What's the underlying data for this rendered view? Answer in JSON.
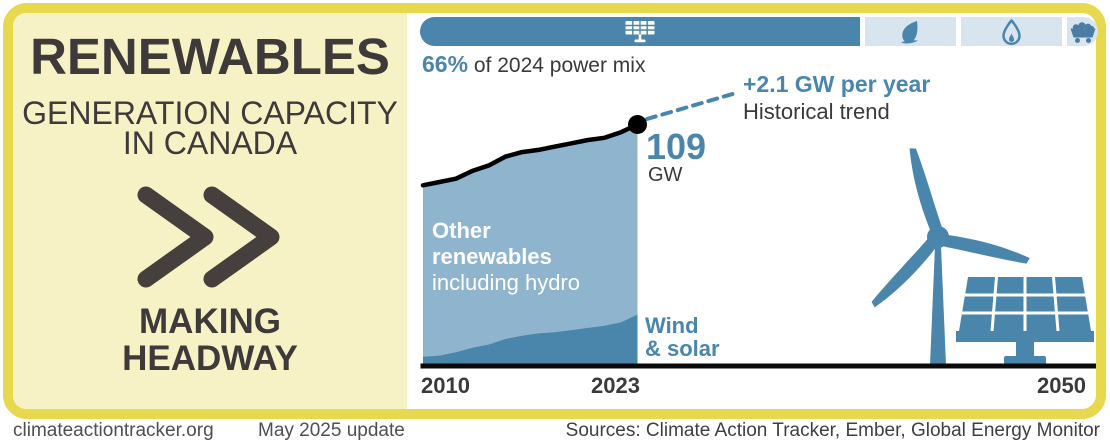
{
  "colors": {
    "accent_blue": "#4a86ab",
    "light_area_blue": "#8fb4cd",
    "pale_segment_blue": "#d8e4ee",
    "panel_yellow": "#f7f2c5",
    "border_yellow": "#e8d84d",
    "heading_charcoal": "#3e3a39",
    "footer_gray": "#4f4f4f"
  },
  "left_panel": {
    "title": "RENEWABLES",
    "subtitle_line1": "GENERATION CAPACITY",
    "subtitle_line2": "IN CANADA",
    "chevron_icon": "double-chevron-right-icon",
    "tagline_line1": "MAKING",
    "tagline_line2": "HEADWAY"
  },
  "power_mix_bar": {
    "caption_highlight": "66%",
    "caption_rest": " of 2024 power mix",
    "segments": [
      {
        "icon": "solar-panel-icon",
        "share_pct_of_2024_power_mix": 66
      },
      {
        "icon": "leaf-icon"
      },
      {
        "icon": "flame-icon"
      },
      {
        "icon": "coal-cart-icon"
      }
    ]
  },
  "chart": {
    "peak_value": "109",
    "peak_unit": "GW",
    "trend_label": "+2.1 GW per year",
    "trend_sublabel": "Historical trend",
    "area_label_line1": "Other",
    "area_label_line2": "renewables",
    "area_label_line3": "including hydro",
    "band_label_line1": "Wind",
    "band_label_line2": "& solar",
    "x_ticks": [
      "2010",
      "2023",
      "2050"
    ]
  },
  "chart_data": {
    "type": "area",
    "title": "Renewables generation capacity in Canada",
    "unit": "GW",
    "x_range": [
      2010,
      2050
    ],
    "x_ticks": [
      2010,
      2023,
      2050
    ],
    "years": [
      2010,
      2011,
      2012,
      2013,
      2014,
      2015,
      2016,
      2017,
      2018,
      2019,
      2020,
      2021,
      2022,
      2023
    ],
    "series": [
      {
        "name": "Wind & solar",
        "color": "#4a86ab",
        "values": [
          4,
          4.5,
          6,
          8,
          9.5,
          12,
          13.5,
          14.5,
          15,
          16,
          17,
          18,
          19.5,
          23
        ]
      },
      {
        "name": "Other renewables including hydro",
        "color": "#8fb4cd",
        "values": [
          77.5,
          78.5,
          78.5,
          80,
          81,
          82.5,
          83,
          83,
          84,
          84.5,
          85,
          85,
          86,
          86
        ]
      }
    ],
    "total_outline_color": "#000000",
    "total_2023_gw": 109,
    "historical_trend_gw_per_year": 2.1,
    "renewables_share_2024_power_mix_pct": 66,
    "legend_position": "inside-area",
    "grid": false
  },
  "footer": {
    "site": "climateactiontracker.org",
    "update": "May 2025 update",
    "sources": "Sources: Climate Action Tracker, Ember, Global Energy Monitor"
  }
}
